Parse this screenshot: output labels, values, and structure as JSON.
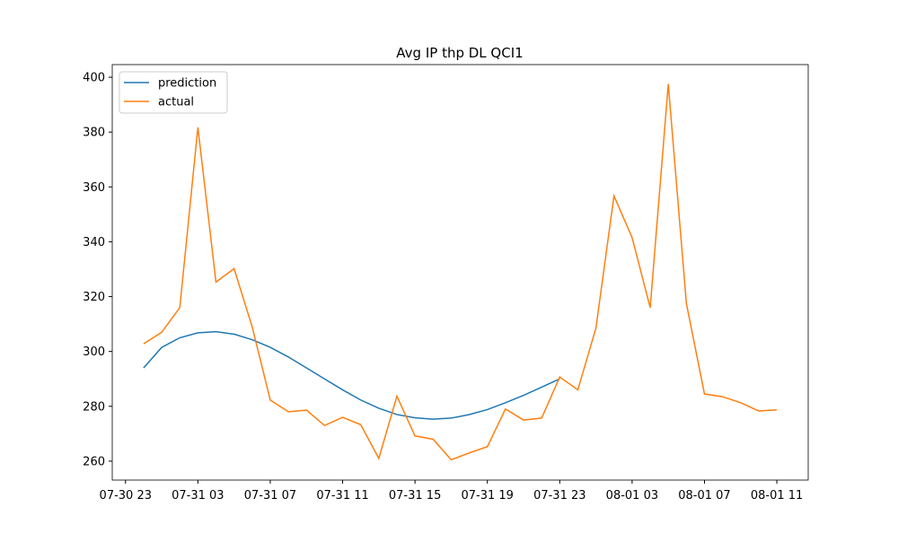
{
  "chart_data": {
    "type": "line",
    "title": "Avg IP thp DL QCI1",
    "x": [
      "07-31 00",
      "07-31 01",
      "07-31 02",
      "07-31 03",
      "07-31 04",
      "07-31 05",
      "07-31 06",
      "07-31 07",
      "07-31 08",
      "07-31 09",
      "07-31 10",
      "07-31 11",
      "07-31 12",
      "07-31 13",
      "07-31 14",
      "07-31 15",
      "07-31 16",
      "07-31 17",
      "07-31 18",
      "07-31 19",
      "07-31 20",
      "07-31 21",
      "07-31 22",
      "07-31 23",
      "08-01 00",
      "08-01 01",
      "08-01 02",
      "08-01 03",
      "08-01 04",
      "08-01 05",
      "08-01 06",
      "08-01 07",
      "08-01 08",
      "08-01 09",
      "08-01 10",
      "08-01 11"
    ],
    "series": [
      {
        "name": "prediction",
        "color": "#1f77b4",
        "values": [
          294,
          301.5,
          305,
          306.8,
          307.2,
          306.3,
          304.3,
          301.5,
          298,
          294,
          290,
          286,
          282.3,
          279.3,
          277,
          275.8,
          275.3,
          275.7,
          277,
          278.8,
          281.3,
          284,
          287,
          290,
          null,
          null,
          null,
          null,
          null,
          null,
          null,
          null,
          null,
          null,
          null,
          null
        ]
      },
      {
        "name": "actual",
        "color": "#ff7f0e",
        "values": [
          302.8,
          307,
          316,
          381.7,
          325.3,
          330.2,
          309,
          282.3,
          278,
          278.6,
          273,
          276,
          273.3,
          261,
          283.7,
          269.2,
          268,
          260.5,
          263,
          265.3,
          279,
          275,
          275.7,
          290.7,
          286,
          308.5,
          356.7,
          341.5,
          316,
          397.5,
          317.5,
          284.5,
          283.5,
          281.3,
          278.3,
          278.7
        ]
      }
    ],
    "xlim": [
      "07-30 22:16",
      "08-01 12:44"
    ],
    "xticks": [
      "07-30 23",
      "07-31 03",
      "07-31 07",
      "07-31 11",
      "07-31 15",
      "07-31 19",
      "07-31 23",
      "08-01 03",
      "08-01 07",
      "08-01 11"
    ],
    "ylim": [
      253.1,
      404.6
    ],
    "yticks": [
      260,
      280,
      300,
      320,
      340,
      360,
      380,
      400
    ],
    "legend": "upper left"
  }
}
